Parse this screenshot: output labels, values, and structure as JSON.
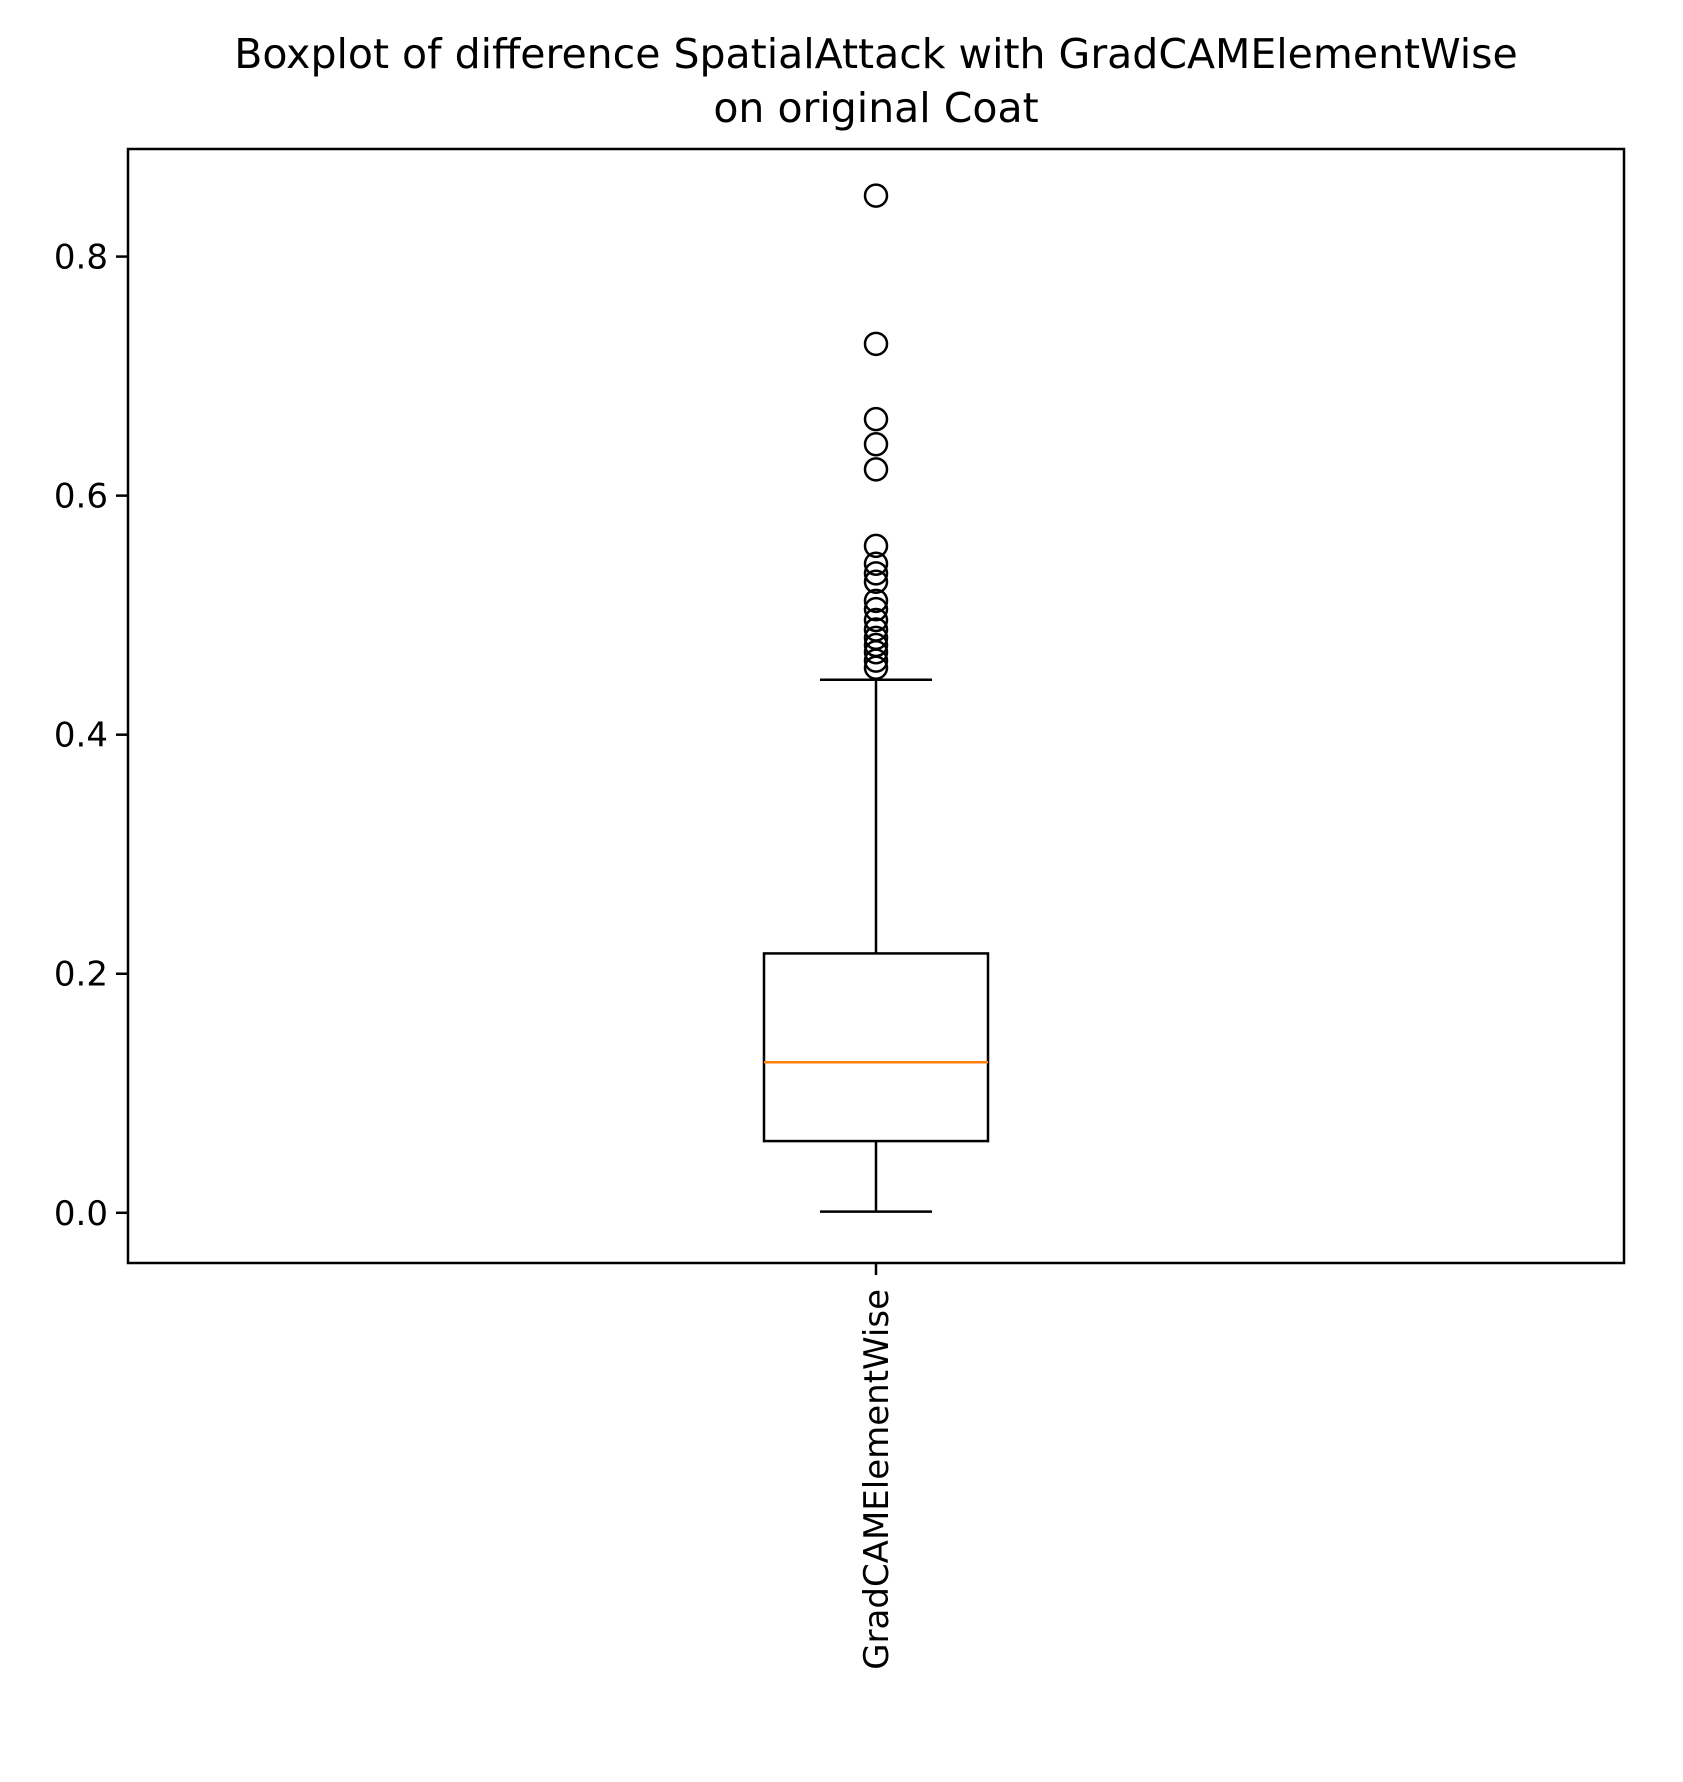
{
  "chart_data": {
    "type": "boxplot",
    "title_lines": [
      "Boxplot of difference SpatialAttack with GradCAMElementWise",
      "on original Coat"
    ],
    "xlabel": "",
    "ylabel": "",
    "categories": [
      "GradCAMElementWise"
    ],
    "ylim": [
      -0.042,
      0.89
    ],
    "yticks": [
      0.0,
      0.2,
      0.4,
      0.6,
      0.8
    ],
    "ytick_labels": [
      "0.0",
      "0.2",
      "0.4",
      "0.6",
      "0.8"
    ],
    "grid": false,
    "boxes": [
      {
        "name": "GradCAMElementWise",
        "whisker_low": 0.001,
        "q1": 0.06,
        "median": 0.126,
        "q3": 0.217,
        "whisker_high": 0.446,
        "outliers": [
          0.851,
          0.727,
          0.664,
          0.643,
          0.622,
          0.558,
          0.543,
          0.535,
          0.528,
          0.512,
          0.505,
          0.496,
          0.488,
          0.481,
          0.475,
          0.469,
          0.462,
          0.456
        ]
      }
    ],
    "colors": {
      "median": "#ff7f0e",
      "box": "#000000",
      "flier": "#000000"
    }
  }
}
